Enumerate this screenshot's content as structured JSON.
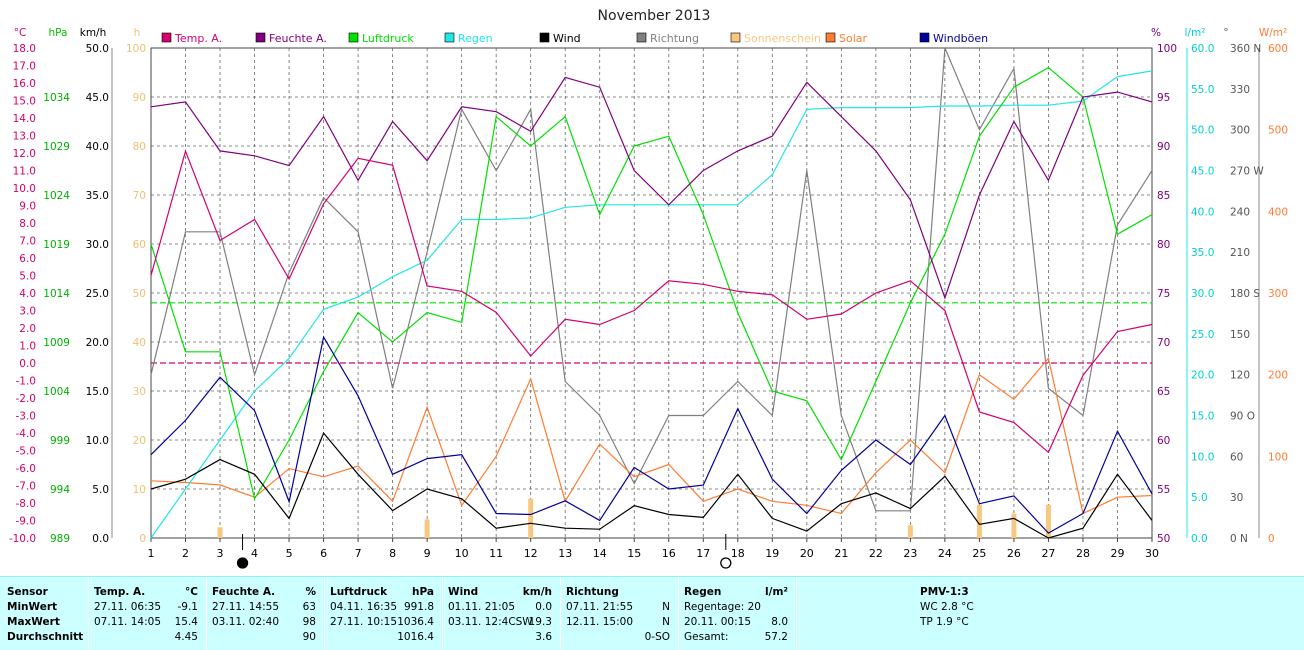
{
  "title": "November 2013",
  "legend": [
    {
      "label": "Temp. A.",
      "color": "#d4006e"
    },
    {
      "label": "Feuchte A.",
      "color": "#80007e"
    },
    {
      "label": "Luftdruck",
      "color": "#00e000"
    },
    {
      "label": "Regen",
      "color": "#22e6e6"
    },
    {
      "label": "Wind",
      "color": "#000000"
    },
    {
      "label": "Richtung",
      "color": "#808080"
    },
    {
      "label": "Sonnenschein",
      "color": "#f8c880"
    },
    {
      "label": "Solar",
      "color": "#ff7c30"
    },
    {
      "label": "Windböen",
      "color": "#00009a"
    }
  ],
  "axes_units": {
    "temp": "°C",
    "hpa": "hPa",
    "kmh": "km/h",
    "h": "h",
    "pct": "%",
    "lm2": "l/m²",
    "deg": "°",
    "wm2": "W/m²"
  },
  "axis_ticks": {
    "temp": [
      "18.0",
      "17.0",
      "16.0",
      "15.0",
      "14.0",
      "13.0",
      "12.0",
      "11.0",
      "10.0",
      "9.0",
      "8.0",
      "7.0",
      "6.0",
      "5.0",
      "4.0",
      "3.0",
      "2.0",
      "1.0",
      "0.0",
      "-1.0",
      "-2.0",
      "-3.0",
      "-4.0",
      "-5.0",
      "-6.0",
      "-7.0",
      "-8.0",
      "-9.0",
      "-10.0"
    ],
    "hpa": [
      "1034",
      "1029",
      "1024",
      "1019",
      "1014",
      "1009",
      "1004",
      "999",
      "994",
      "989"
    ],
    "kmh": [
      "50.0",
      "45.0",
      "40.0",
      "35.0",
      "30.0",
      "25.0",
      "20.0",
      "15.0",
      "10.0",
      "5.0",
      "0.0"
    ],
    "h": [
      "100",
      "90",
      "80",
      "70",
      "60",
      "50",
      "40",
      "30",
      "20",
      "10",
      "0"
    ],
    "pct": [
      "100",
      "95",
      "90",
      "85",
      "80",
      "75",
      "70",
      "65",
      "60",
      "55",
      "50"
    ],
    "lm2": [
      "60.0",
      "55.0",
      "50.0",
      "45.0",
      "40.0",
      "35.0",
      "30.0",
      "25.0",
      "20.0",
      "15.0",
      "10.0",
      "5.0",
      "0.0"
    ],
    "deg": [
      "360 N",
      "330",
      "300",
      "270 W",
      "240",
      "210",
      "180 S",
      "150",
      "120",
      "90 O",
      "60",
      "30",
      "0 N"
    ],
    "wm2": [
      "600",
      "500",
      "400",
      "300",
      "200",
      "100",
      "0"
    ]
  },
  "moon_phases": [
    {
      "day": 4,
      "phase": "new"
    },
    {
      "day": 18,
      "phase": "full"
    }
  ],
  "chart_data": {
    "type": "line",
    "title": "November 2013",
    "x": [
      1,
      2,
      3,
      4,
      5,
      6,
      7,
      8,
      9,
      10,
      11,
      12,
      13,
      14,
      15,
      16,
      17,
      18,
      19,
      20,
      21,
      22,
      23,
      24,
      25,
      26,
      27,
      28,
      29,
      30
    ],
    "series": [
      {
        "name": "Temp. A.",
        "unit": "°C",
        "color": "#d4006e",
        "values": [
          5.0,
          12.1,
          7.0,
          8.2,
          4.8,
          9.1,
          11.7,
          11.3,
          4.4,
          4.1,
          2.9,
          0.4,
          2.5,
          2.2,
          3.0,
          4.7,
          4.5,
          4.1,
          3.9,
          2.5,
          2.8,
          4.0,
          4.7,
          3.0,
          -2.8,
          -3.4,
          -5.1,
          -0.7,
          1.8,
          2.2
        ]
      },
      {
        "name": "Feuchte A.",
        "unit": "%",
        "color": "#80007e",
        "values": [
          94,
          94.5,
          89.5,
          89,
          88,
          93,
          86.5,
          92.5,
          88.5,
          94,
          93.5,
          91.5,
          97,
          96,
          87.5,
          84,
          87.5,
          89.5,
          91,
          96.5,
          93,
          89.5,
          84.5,
          74.5,
          85,
          92.5,
          86.5,
          95,
          95.5,
          94.5
        ]
      },
      {
        "name": "Luftdruck",
        "unit": "hPa",
        "color": "#00e000",
        "values": [
          1019,
          1008,
          1008,
          993,
          999,
          1006,
          1012,
          1009,
          1012,
          1011,
          1032,
          1029,
          1032,
          1022,
          1029,
          1030,
          1022,
          1012,
          1004,
          1003,
          997,
          1005,
          1013,
          1020,
          1030,
          1035,
          1037,
          1034,
          1020,
          1022
        ]
      },
      {
        "name": "Regen",
        "unit": "l/m²",
        "color": "#22e6e6",
        "values": [
          0,
          6,
          12,
          18,
          22,
          28,
          29.5,
          32,
          34,
          39,
          39,
          39.2,
          40.5,
          40.8,
          40.8,
          40.8,
          40.8,
          40.8,
          44.5,
          52.5,
          52.7,
          52.7,
          52.7,
          52.9,
          52.9,
          53,
          53,
          53.5,
          56.5,
          57.2
        ]
      },
      {
        "name": "Wind",
        "unit": "km/h",
        "color": "#000000",
        "values": [
          5.0,
          6.0,
          8.0,
          6.5,
          2.0,
          10.7,
          6.5,
          2.8,
          5.0,
          4.0,
          1.0,
          1.5,
          1.0,
          0.9,
          3.3,
          2.4,
          2.1,
          6.5,
          2.0,
          0.7,
          3.5,
          4.6,
          3.0,
          6.3,
          1.4,
          2.0,
          0.0,
          1.0,
          6.5,
          1.8
        ]
      },
      {
        "name": "Richtung",
        "unit": "°",
        "color": "#808080",
        "values": [
          120,
          225,
          225,
          120,
          195,
          250,
          225,
          110,
          210,
          315,
          270,
          315,
          115,
          90,
          40,
          90,
          90,
          115,
          90,
          270,
          90,
          20,
          20,
          360,
          300,
          345,
          110,
          90,
          230,
          270
        ]
      },
      {
        "name": "Sonnenschein",
        "unit": "h",
        "color": "#f8c880",
        "values": [
          0,
          0,
          2.2,
          0,
          0,
          0,
          0,
          0,
          3.8,
          0,
          0,
          8.0,
          0,
          0,
          0,
          0,
          0,
          0,
          0,
          0,
          0,
          0,
          2.6,
          0,
          6.8,
          5.0,
          6.8,
          0,
          0,
          0
        ]
      },
      {
        "name": "Solar",
        "unit": "W/m²",
        "color": "#ff7c30",
        "values": [
          70,
          68,
          65,
          50,
          85,
          75,
          88,
          45,
          160,
          40,
          100,
          195,
          45,
          115,
          75,
          90,
          45,
          60,
          45,
          40,
          30,
          80,
          120,
          80,
          200,
          170,
          220,
          30,
          50,
          52
        ]
      },
      {
        "name": "Windböen",
        "unit": "km/h",
        "color": "#00009a",
        "values": [
          8.5,
          12.0,
          16.4,
          13.0,
          3.7,
          20.5,
          14.5,
          6.5,
          8.1,
          8.5,
          2.5,
          2.4,
          3.8,
          1.8,
          7.2,
          5.0,
          5.4,
          13.2,
          6.0,
          2.5,
          6.9,
          10.0,
          7.5,
          12.5,
          3.5,
          4.3,
          0.5,
          2.5,
          10.9,
          4.5
        ]
      }
    ],
    "reference_lines": [
      {
        "axis": "temp",
        "value": 0.0,
        "color": "#d4006e"
      },
      {
        "axis": "hpa",
        "value": 1013,
        "color": "#00e000"
      }
    ]
  },
  "stats": {
    "sensor": {
      "header": "Sensor",
      "rows": [
        "MinWert",
        "MaxWert",
        "Durchschnitt"
      ]
    },
    "temp": {
      "header": "Temp. A.",
      "unit": "°C",
      "min_time": "27.11.  06:35",
      "min_val": "-9.1",
      "max_time": "07.11.  14:05",
      "max_val": "15.4",
      "avg": "4.45"
    },
    "feuchte": {
      "header": "Feuchte A.",
      "unit": "%",
      "min_time": "27.11.  14:55",
      "min_val": "63",
      "max_time": "03.11.  02:40",
      "max_val": "98",
      "avg": "90"
    },
    "luftdruck": {
      "header": "Luftdruck",
      "unit": "hPa",
      "min_time": "04.11.  16:35",
      "min_val": "991.8",
      "max_time": "27.11.  10:15",
      "max_val": "1036.4",
      "avg": "1016.4"
    },
    "wind": {
      "header": "Wind",
      "unit": "km/h",
      "min_time": "01.11.  21:05",
      "min_val": "0.0",
      "max_time": "03.11.  12:4CSW",
      "max_val": "19.3",
      "avg": "3.6"
    },
    "richtung": {
      "header": "Richtung",
      "min_time": "07.11.  21:55",
      "min_val": "N",
      "max_time": "12.11.  15:00",
      "max_val": "N",
      "avg": "0-SO"
    },
    "regen": {
      "header": "Regen",
      "unit": "l/m²",
      "line1": "Regentage: 20",
      "time2": "20.11.  00:15",
      "val2": "8.0",
      "label3": "Gesamt:",
      "val3": "57.2"
    },
    "pmv": {
      "header": "PMV-1:3",
      "wc": "WC 2.8 °C",
      "tp": "TP 1.9 °C"
    }
  }
}
